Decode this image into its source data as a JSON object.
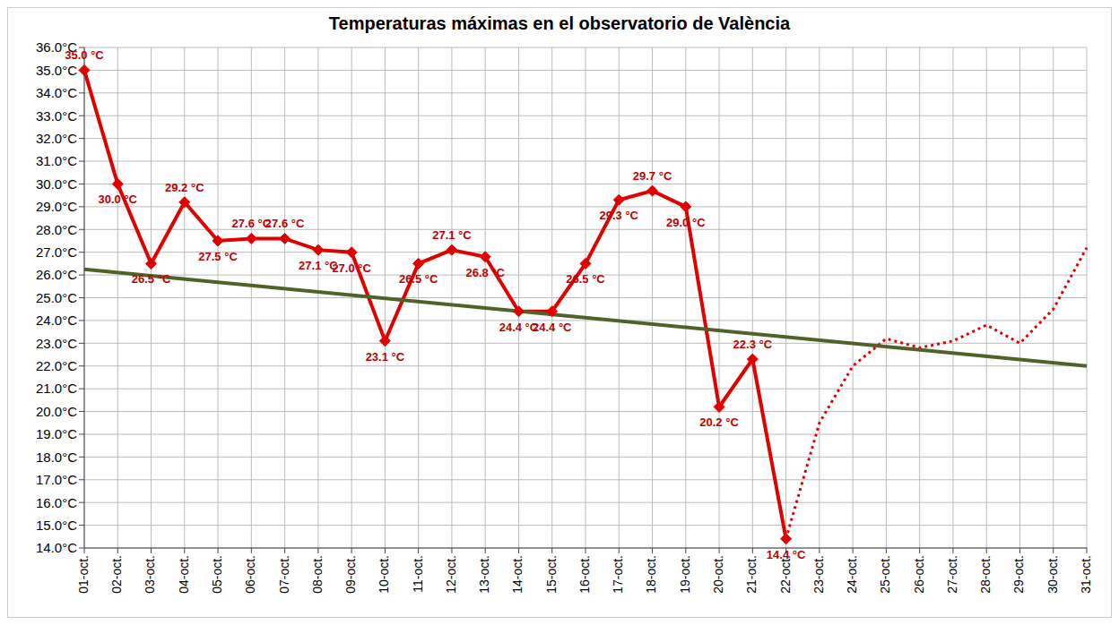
{
  "chart_data": {
    "type": "line",
    "title": "Temperaturas máximas en el observatorio de València",
    "categories": [
      "01-oct.",
      "02-oct.",
      "03-oct.",
      "04-oct.",
      "05-oct.",
      "06-oct.",
      "07-oct.",
      "08-oct.",
      "09-oct.",
      "10-oct.",
      "11-oct.",
      "12-oct.",
      "13-oct.",
      "14-oct.",
      "15-oct.",
      "16-oct.",
      "17-oct.",
      "18-oct.",
      "19-oct.",
      "20-oct.",
      "21-oct.",
      "22-oct.",
      "23-oct.",
      "24-oct.",
      "25-oct.",
      "26-oct.",
      "27-oct.",
      "28-oct.",
      "29-oct.",
      "30-oct.",
      "31-oct."
    ],
    "series": [
      {
        "color": "#e00000",
        "marker": "diamond",
        "line_style": "solid",
        "data_labels": true,
        "values": [
          35.0,
          30.0,
          26.5,
          29.2,
          27.5,
          27.6,
          27.6,
          27.1,
          27.0,
          23.1,
          26.5,
          27.1,
          26.8,
          24.4,
          24.4,
          26.5,
          29.3,
          29.7,
          29.0,
          20.2,
          22.3,
          14.4,
          null,
          null,
          null,
          null,
          null,
          null,
          null,
          null,
          null
        ],
        "value_labels": [
          "35.0 °C",
          "30.0 °C",
          "26.5 °C",
          "29.2 °C",
          "27.5 °C",
          "27.6 °C",
          "27.6 °C",
          "27.1 °C",
          "27.0 °C",
          "23.1 °C",
          "26.5 °C",
          "27.1 °C",
          "26.8 °C",
          "24.4 °C",
          "24.4 °C",
          "26.5 °C",
          "29.3 °C",
          "29.7 °C",
          "29.0 °C",
          "20.2 °C",
          "22.3 °C",
          "14.4 °C",
          null,
          null,
          null,
          null,
          null,
          null,
          null,
          null,
          null
        ]
      },
      {
        "color": "#e00000",
        "marker": "none",
        "line_style": "dotted",
        "values": [
          null,
          null,
          null,
          null,
          null,
          null,
          null,
          null,
          null,
          null,
          null,
          null,
          null,
          null,
          null,
          null,
          null,
          null,
          null,
          null,
          null,
          14.4,
          19.5,
          22.0,
          23.2,
          22.8,
          23.1,
          23.8,
          23.0,
          24.5,
          27.2
        ]
      },
      {
        "color": "#4f6228",
        "marker": "none",
        "line_style": "solid",
        "values": [
          26.25,
          null,
          null,
          null,
          null,
          null,
          null,
          null,
          null,
          null,
          null,
          null,
          null,
          null,
          null,
          null,
          null,
          null,
          null,
          null,
          null,
          null,
          null,
          null,
          null,
          null,
          null,
          null,
          null,
          null,
          22.0
        ]
      }
    ],
    "ylim": [
      14,
      36
    ],
    "yticks": [
      {
        "value": 14,
        "label": "14.0°C"
      },
      {
        "value": 15,
        "label": "15.0°C"
      },
      {
        "value": 16,
        "label": "16.0°C"
      },
      {
        "value": 17,
        "label": "17.0°C"
      },
      {
        "value": 18,
        "label": "18.0°C"
      },
      {
        "value": 19,
        "label": "19.0°C"
      },
      {
        "value": 20,
        "label": "20.0°C"
      },
      {
        "value": 21,
        "label": "21.0°C"
      },
      {
        "value": 22,
        "label": "22.0°C"
      },
      {
        "value": 23,
        "label": "23.0°C"
      },
      {
        "value": 24,
        "label": "24.0°C"
      },
      {
        "value": 25,
        "label": "25.0°C"
      },
      {
        "value": 26,
        "label": "26.0°C"
      },
      {
        "value": 27,
        "label": "27.0°C"
      },
      {
        "value": 28,
        "label": "28.0°C"
      },
      {
        "value": 29,
        "label": "29.0°C"
      },
      {
        "value": 30,
        "label": "30.0°C"
      },
      {
        "value": 31,
        "label": "31.0°C"
      },
      {
        "value": 32,
        "label": "32.0°C"
      },
      {
        "value": 33,
        "label": "33.0°C"
      },
      {
        "value": 34,
        "label": "34.0°C"
      },
      {
        "value": 35,
        "label": "35.0°C"
      },
      {
        "value": 36,
        "label": "36.0°C"
      }
    ],
    "grid": true
  }
}
